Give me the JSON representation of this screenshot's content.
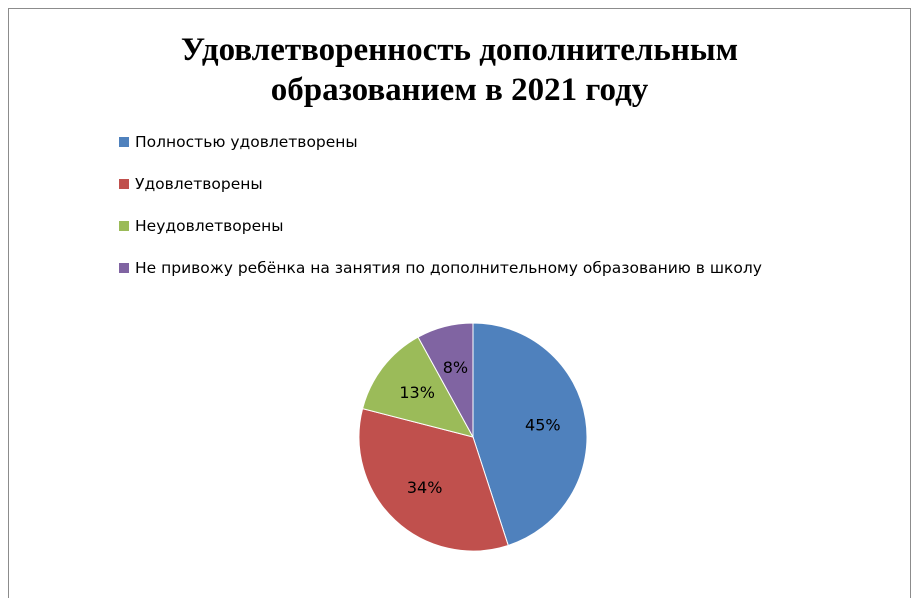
{
  "chart_data": {
    "type": "pie",
    "title": "Удовлетворенность дополнительным образованием в 2021 году",
    "title_lines": [
      "Удовлетворенность дополнительным",
      "образованием в 2021 году"
    ],
    "categories": [
      "Полностью удовлетворены",
      "Удовлетворены",
      "Неудовлетворены",
      "Не привожу ребёнка на занятия по дополнительному образованию в школу"
    ],
    "values": [
      45,
      34,
      13,
      8
    ],
    "labels": [
      "45%",
      "34%",
      "13%",
      "8%"
    ],
    "colors": [
      "#4f81bd",
      "#c0504d",
      "#9bbb59",
      "#8064a2"
    ],
    "legend_position": "top-left",
    "xlabel": "",
    "ylabel": ""
  }
}
